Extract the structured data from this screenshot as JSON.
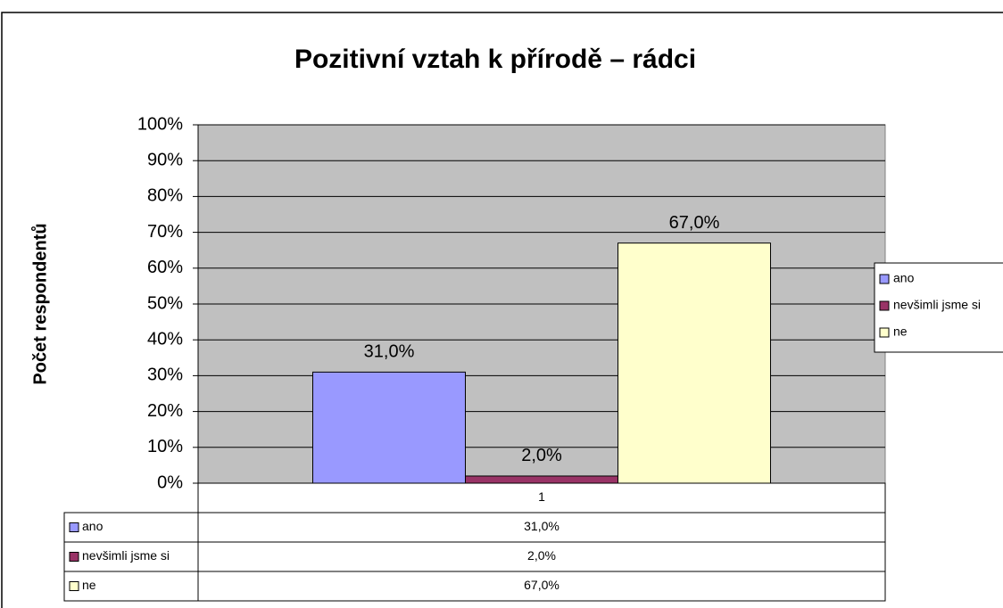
{
  "chart_data": {
    "type": "bar",
    "title": "Pozitivní vztah k přírodě – rádci",
    "y_label": "Počet respondentů",
    "categories": [
      "1"
    ],
    "series": [
      {
        "name": "ano",
        "color": "#9999ff",
        "values": [
          31
        ],
        "value_labels": [
          "31,0%"
        ]
      },
      {
        "name": "nevšimli jsme si",
        "color": "#993366",
        "values": [
          2
        ],
        "value_labels": [
          "2,0%"
        ]
      },
      {
        "name": "ne",
        "color": "#ffffcc",
        "values": [
          67
        ],
        "value_labels": [
          "67,0%"
        ]
      }
    ],
    "ylim": [
      0,
      100
    ],
    "yticks": [
      {
        "value": 0,
        "label": "0%"
      },
      {
        "value": 10,
        "label": "10%"
      },
      {
        "value": 20,
        "label": "20%"
      },
      {
        "value": 30,
        "label": "30%"
      },
      {
        "value": 40,
        "label": "40%"
      },
      {
        "value": 50,
        "label": "50%"
      },
      {
        "value": 60,
        "label": "60%"
      },
      {
        "value": 70,
        "label": "70%"
      },
      {
        "value": 80,
        "label": "80%"
      },
      {
        "value": 90,
        "label": "90%"
      },
      {
        "value": 100,
        "label": "100%"
      }
    ],
    "grid": true,
    "plot_background": "#c0c0c0",
    "legend": "right"
  }
}
